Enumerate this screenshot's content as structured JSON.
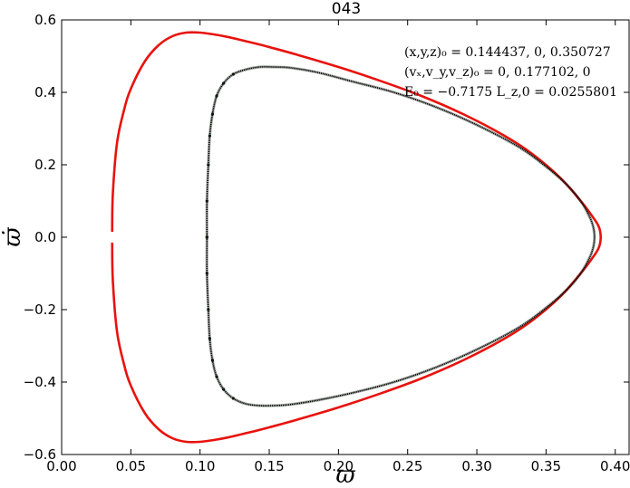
{
  "chart_data": {
    "type": "line",
    "title": "043",
    "xlabel": "ϖ",
    "ylabel": "ϖ̇",
    "xlim": [
      0.0,
      0.41
    ],
    "ylim": [
      -0.6,
      0.6
    ],
    "xticks": [
      {
        "value": 0.0,
        "label": "0.00"
      },
      {
        "value": 0.05,
        "label": "0.05"
      },
      {
        "value": 0.1,
        "label": "0.10"
      },
      {
        "value": 0.15,
        "label": "0.15"
      },
      {
        "value": 0.2,
        "label": "0.20"
      },
      {
        "value": 0.25,
        "label": "0.25"
      },
      {
        "value": 0.3,
        "label": "0.30"
      },
      {
        "value": 0.35,
        "label": "0.35"
      },
      {
        "value": 0.4,
        "label": "0.40"
      }
    ],
    "yticks": [
      {
        "value": 0.6,
        "label": "0.6"
      },
      {
        "value": 0.4,
        "label": "0.4"
      },
      {
        "value": 0.2,
        "label": "0.2"
      },
      {
        "value": 0.0,
        "label": "0.0"
      },
      {
        "value": -0.2,
        "label": "−0.2"
      },
      {
        "value": -0.4,
        "label": "−0.4"
      },
      {
        "value": -0.6,
        "label": "−0.6"
      }
    ],
    "grid": false,
    "annotations": [
      "(x,y,z)₀ = 0.144437, 0, 0.350727",
      "(vₓ,v_y,v_z)₀ = 0, 0.177102, 0",
      "E₀ = −0.7175   L_z,0 = 0.0255801"
    ],
    "series": [
      {
        "color": "#e8120c",
        "style": "line",
        "x": [
          0.0365,
          0.037,
          0.04,
          0.045,
          0.05,
          0.06,
          0.07,
          0.08,
          0.09,
          0.1,
          0.11,
          0.12,
          0.13,
          0.14,
          0.15,
          0.17,
          0.2,
          0.23,
          0.26,
          0.29,
          0.32,
          0.34,
          0.36,
          0.375,
          0.383,
          0.388,
          0.3895,
          0.388,
          0.383,
          0.375,
          0.36,
          0.34,
          0.32,
          0.29,
          0.26,
          0.23,
          0.2,
          0.17,
          0.15,
          0.14,
          0.13,
          0.12,
          0.11,
          0.1,
          0.09,
          0.08,
          0.07,
          0.06,
          0.05,
          0.045,
          0.04,
          0.037,
          0.0365
        ],
        "y": [
          0.015,
          0.12,
          0.26,
          0.35,
          0.41,
          0.485,
          0.53,
          0.555,
          0.565,
          0.565,
          0.56,
          0.553,
          0.544,
          0.535,
          0.525,
          0.504,
          0.47,
          0.432,
          0.39,
          0.34,
          0.28,
          0.23,
          0.165,
          0.1,
          0.06,
          0.03,
          0.0,
          -0.03,
          -0.06,
          -0.1,
          -0.165,
          -0.23,
          -0.28,
          -0.34,
          -0.39,
          -0.432,
          -0.47,
          -0.504,
          -0.525,
          -0.535,
          -0.544,
          -0.553,
          -0.56,
          -0.565,
          -0.565,
          -0.555,
          -0.53,
          -0.485,
          -0.41,
          -0.35,
          -0.26,
          -0.12,
          -0.015
        ]
      },
      {
        "color": "#000000",
        "style": "dots",
        "x": [
          0.105,
          0.105,
          0.106,
          0.107,
          0.109,
          0.112,
          0.117,
          0.124,
          0.133,
          0.143,
          0.153,
          0.165,
          0.185,
          0.21,
          0.24,
          0.27,
          0.3,
          0.33,
          0.35,
          0.365,
          0.375,
          0.381,
          0.384,
          0.385,
          0.384,
          0.381,
          0.375,
          0.365,
          0.35,
          0.33,
          0.3,
          0.27,
          0.24,
          0.21,
          0.185,
          0.165,
          0.153,
          0.143,
          0.133,
          0.124,
          0.117,
          0.112,
          0.109,
          0.107,
          0.106,
          0.105,
          0.105
        ],
        "y": [
          0.0,
          0.1,
          0.2,
          0.28,
          0.34,
          0.39,
          0.425,
          0.45,
          0.463,
          0.47,
          0.47,
          0.468,
          0.455,
          0.43,
          0.4,
          0.36,
          0.31,
          0.25,
          0.195,
          0.145,
          0.1,
          0.06,
          0.03,
          0.0,
          -0.03,
          -0.06,
          -0.1,
          -0.145,
          -0.195,
          -0.25,
          -0.31,
          -0.36,
          -0.4,
          -0.43,
          -0.45,
          -0.462,
          -0.465,
          -0.465,
          -0.46,
          -0.445,
          -0.42,
          -0.385,
          -0.34,
          -0.28,
          -0.2,
          -0.1,
          0.0
        ]
      }
    ]
  }
}
